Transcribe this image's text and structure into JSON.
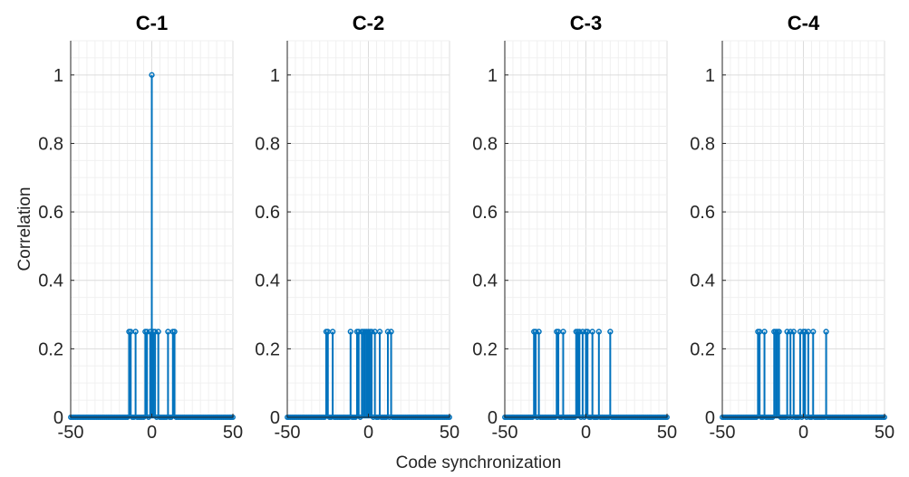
{
  "figure": {
    "xlabel": "Code synchronization",
    "ylabel": "Correlation"
  },
  "colors": {
    "stem": "#0072bd",
    "grid_minor": "#f0f0f0",
    "grid_major": "#dcdcdc",
    "axis": "#262626"
  },
  "chart_data": [
    {
      "type": "stem",
      "title": "C-1",
      "xlim": [
        -50,
        50
      ],
      "ylim": [
        0,
        1.1
      ],
      "xticks": [
        -50,
        0,
        50
      ],
      "yticks": [
        0,
        0.2,
        0.4,
        0.6,
        0.8,
        1
      ],
      "grid": true,
      "baseline": 0,
      "points": [
        {
          "x": -14,
          "y": 0.25
        },
        {
          "x": -13,
          "y": 0.25
        },
        {
          "x": -10,
          "y": 0.25
        },
        {
          "x": -4,
          "y": 0.25
        },
        {
          "x": -3,
          "y": 0.25
        },
        {
          "x": -1,
          "y": 0.25
        },
        {
          "x": 0,
          "y": 1.0
        },
        {
          "x": 1,
          "y": 0.25
        },
        {
          "x": 2,
          "y": 0.25
        },
        {
          "x": 4,
          "y": 0.25
        },
        {
          "x": 10,
          "y": 0.25
        },
        {
          "x": 13,
          "y": 0.25
        },
        {
          "x": 14,
          "y": 0.25
        }
      ]
    },
    {
      "type": "stem",
      "title": "C-2",
      "xlim": [
        -50,
        50
      ],
      "ylim": [
        0,
        1.1
      ],
      "xticks": [
        -50,
        0,
        50
      ],
      "yticks": [
        0,
        0.2,
        0.4,
        0.6,
        0.8,
        1
      ],
      "grid": true,
      "baseline": 0,
      "points": [
        {
          "x": -26,
          "y": 0.25
        },
        {
          "x": -25,
          "y": 0.25
        },
        {
          "x": -22,
          "y": 0.25
        },
        {
          "x": -11,
          "y": 0.25
        },
        {
          "x": -7,
          "y": 0.25
        },
        {
          "x": -6,
          "y": 0.25
        },
        {
          "x": -4,
          "y": 0.25
        },
        {
          "x": -3,
          "y": 0.25
        },
        {
          "x": -2,
          "y": 0.25
        },
        {
          "x": -1,
          "y": 0.25
        },
        {
          "x": 0,
          "y": 0.25
        },
        {
          "x": 1,
          "y": 0.25
        },
        {
          "x": 2,
          "y": 0.25
        },
        {
          "x": 4,
          "y": 0.25
        },
        {
          "x": 7,
          "y": 0.25
        },
        {
          "x": 12,
          "y": 0.25
        },
        {
          "x": 14,
          "y": 0.25
        }
      ]
    },
    {
      "type": "stem",
      "title": "C-3",
      "xlim": [
        -50,
        50
      ],
      "ylim": [
        0,
        1.1
      ],
      "xticks": [
        -50,
        0,
        50
      ],
      "yticks": [
        0,
        0.2,
        0.4,
        0.6,
        0.8,
        1
      ],
      "grid": true,
      "baseline": 0,
      "points": [
        {
          "x": -32,
          "y": 0.25
        },
        {
          "x": -31,
          "y": 0.25
        },
        {
          "x": -29,
          "y": 0.25
        },
        {
          "x": -18,
          "y": 0.25
        },
        {
          "x": -17,
          "y": 0.25
        },
        {
          "x": -14,
          "y": 0.25
        },
        {
          "x": -6,
          "y": 0.25
        },
        {
          "x": -5,
          "y": 0.25
        },
        {
          "x": -4,
          "y": 0.25
        },
        {
          "x": -2,
          "y": 0.25
        },
        {
          "x": 0,
          "y": 0.25
        },
        {
          "x": 1,
          "y": 0.25
        },
        {
          "x": 4,
          "y": 0.25
        },
        {
          "x": 8,
          "y": 0.25
        },
        {
          "x": 15,
          "y": 0.25
        }
      ]
    },
    {
      "type": "stem",
      "title": "C-4",
      "xlim": [
        -50,
        50
      ],
      "ylim": [
        0,
        1.1
      ],
      "xticks": [
        -50,
        0,
        50
      ],
      "yticks": [
        0,
        0.2,
        0.4,
        0.6,
        0.8,
        1
      ],
      "grid": true,
      "baseline": 0,
      "points": [
        {
          "x": -28,
          "y": 0.25
        },
        {
          "x": -27,
          "y": 0.25
        },
        {
          "x": -24,
          "y": 0.25
        },
        {
          "x": -18,
          "y": 0.25
        },
        {
          "x": -17,
          "y": 0.25
        },
        {
          "x": -16,
          "y": 0.25
        },
        {
          "x": -15,
          "y": 0.25
        },
        {
          "x": -10,
          "y": 0.25
        },
        {
          "x": -8,
          "y": 0.25
        },
        {
          "x": -6,
          "y": 0.25
        },
        {
          "x": -2,
          "y": 0.25
        },
        {
          "x": 0,
          "y": 0.25
        },
        {
          "x": 1,
          "y": 0.25
        },
        {
          "x": 3,
          "y": 0.25
        },
        {
          "x": 6,
          "y": 0.25
        },
        {
          "x": 14,
          "y": 0.25
        }
      ]
    }
  ]
}
